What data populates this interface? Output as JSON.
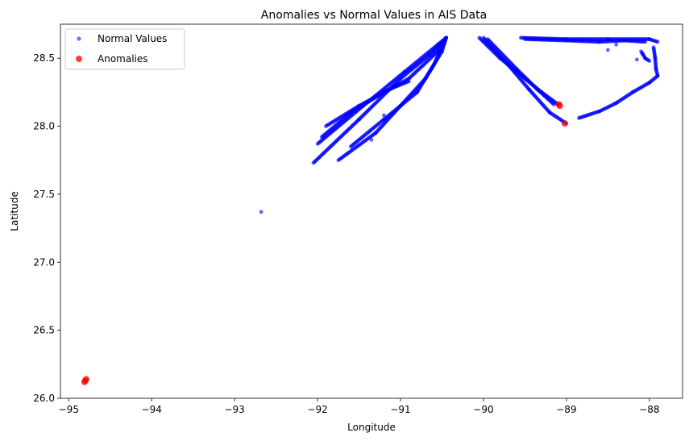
{
  "chart_data": {
    "type": "scatter",
    "title": "Anomalies vs Normal Values in AIS Data",
    "xlabel": "Longitude",
    "ylabel": "Latitude",
    "xlim": [
      -95.1,
      -87.6
    ],
    "ylim": [
      26.0,
      28.75
    ],
    "xticks": [
      -95,
      -94,
      -93,
      -92,
      -91,
      -90,
      -89,
      -88
    ],
    "xtick_labels": [
      "−95",
      "−94",
      "−93",
      "−92",
      "−91",
      "−90",
      "−89",
      "−88"
    ],
    "yticks": [
      26.0,
      26.5,
      27.0,
      27.5,
      28.0,
      28.5
    ],
    "ytick_labels": [
      "26.0",
      "26.5",
      "27.0",
      "27.5",
      "28.0",
      "28.5"
    ],
    "grid": false,
    "legend_position": "top-left",
    "series": [
      {
        "name": "Normal Values",
        "color": "#0000ff",
        "marker": "circle-small",
        "tracks": [
          {
            "x": [
              -92.05,
              -91.5,
              -91.0,
              -90.6,
              -90.45
            ],
            "y": [
              27.73,
              28.05,
              28.35,
              28.55,
              28.65
            ]
          },
          {
            "x": [
              -92.0,
              -91.45,
              -90.95,
              -90.55,
              -90.45
            ],
            "y": [
              27.87,
              28.15,
              28.4,
              28.6,
              28.65
            ]
          },
          {
            "x": [
              -91.95,
              -91.6,
              -91.2,
              -90.9,
              -90.55,
              -90.45
            ],
            "y": [
              27.92,
              28.1,
              28.25,
              28.35,
              28.55,
              28.65
            ]
          },
          {
            "x": [
              -91.9,
              -91.5,
              -91.1,
              -90.9
            ],
            "y": [
              28.0,
              28.15,
              28.28,
              28.33
            ]
          },
          {
            "x": [
              -91.75,
              -91.3,
              -91.0,
              -90.7,
              -90.5,
              -90.45
            ],
            "y": [
              27.75,
              27.95,
              28.15,
              28.35,
              28.55,
              28.65
            ]
          },
          {
            "x": [
              -91.6,
              -91.2,
              -90.8,
              -90.6,
              -90.45
            ],
            "y": [
              27.85,
              28.05,
              28.25,
              28.45,
              28.65
            ]
          },
          {
            "x": [
              -90.05,
              -89.8,
              -89.5,
              -89.3,
              -89.1
            ],
            "y": [
              28.65,
              28.5,
              28.35,
              28.25,
              28.16
            ]
          },
          {
            "x": [
              -90.0,
              -89.7,
              -89.45,
              -89.2,
              -89.0
            ],
            "y": [
              28.65,
              28.45,
              28.27,
              28.1,
              28.02
            ]
          },
          {
            "x": [
              -89.95,
              -89.6,
              -89.35,
              -89.15
            ],
            "y": [
              28.64,
              28.42,
              28.27,
              28.16
            ]
          },
          {
            "x": [
              -89.55,
              -89.0,
              -88.5,
              -88.0,
              -87.9
            ],
            "y": [
              28.65,
              28.64,
              28.64,
              28.64,
              28.62
            ]
          },
          {
            "x": [
              -89.5,
              -89.0,
              -88.6,
              -88.3,
              -88.05
            ],
            "y": [
              28.64,
              28.63,
              28.62,
              28.63,
              28.62
            ]
          },
          {
            "x": [
              -88.1,
              -88.05,
              -88.0
            ],
            "y": [
              28.55,
              28.5,
              28.48
            ]
          },
          {
            "x": [
              -87.95,
              -87.93,
              -87.92,
              -87.9
            ],
            "y": [
              28.58,
              28.5,
              28.42,
              28.37
            ]
          },
          {
            "x": [
              -88.85,
              -88.6,
              -88.4,
              -88.2,
              -88.0,
              -87.9
            ],
            "y": [
              28.06,
              28.11,
              28.17,
              28.25,
              28.32,
              28.37
            ]
          }
        ],
        "points": [
          {
            "x": -92.68,
            "y": 27.37
          },
          {
            "x": -91.35,
            "y": 27.9
          },
          {
            "x": -91.2,
            "y": 28.08
          },
          {
            "x": -90.65,
            "y": 28.52
          },
          {
            "x": -88.5,
            "y": 28.56
          },
          {
            "x": -88.4,
            "y": 28.6
          },
          {
            "x": -88.15,
            "y": 28.49
          },
          {
            "x": -88.08,
            "y": 28.53
          }
        ]
      },
      {
        "name": "Anomalies",
        "color": "#ff0000",
        "marker": "circle",
        "points": [
          {
            "x": -94.8,
            "y": 26.13
          },
          {
            "x": -94.81,
            "y": 26.12
          },
          {
            "x": -94.79,
            "y": 26.14
          },
          {
            "x": -89.09,
            "y": 28.16
          },
          {
            "x": -89.08,
            "y": 28.15
          },
          {
            "x": -89.02,
            "y": 28.02
          }
        ]
      }
    ]
  }
}
